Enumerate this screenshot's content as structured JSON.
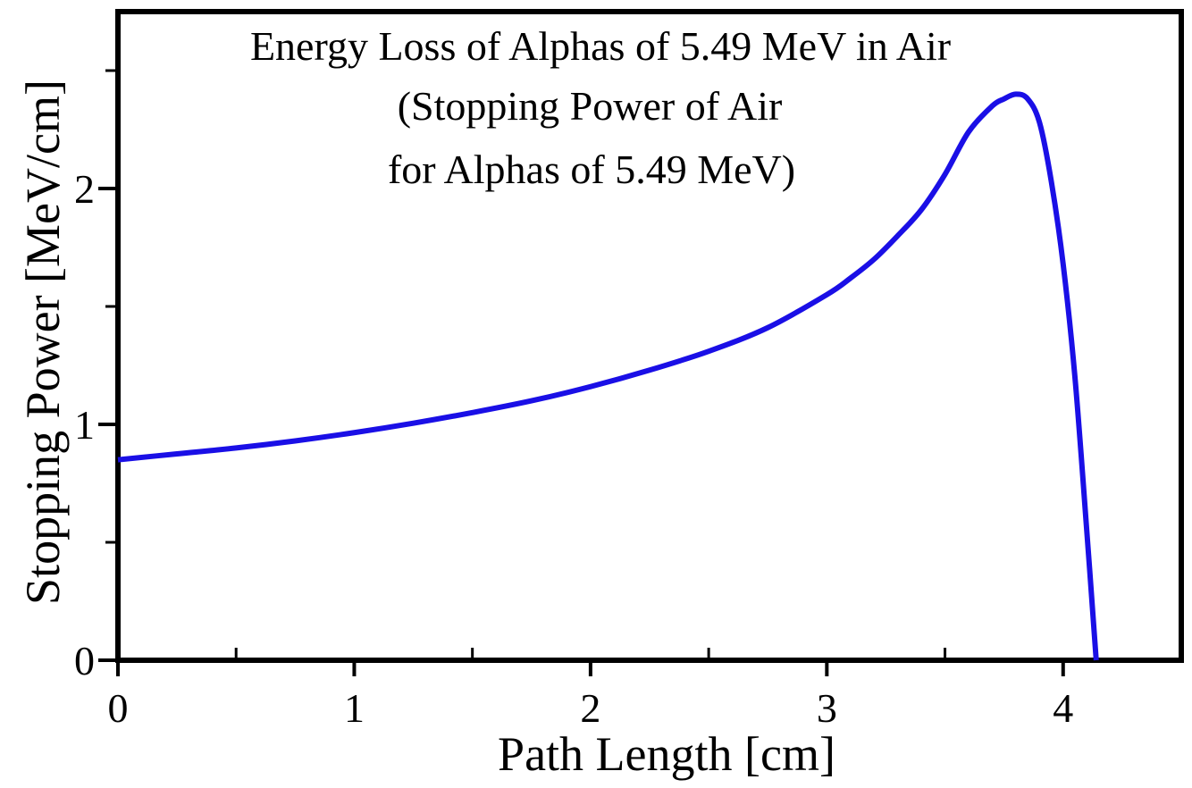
{
  "chart_data": {
    "type": "line",
    "title_lines": [
      "Energy Loss of Alphas of 5.49 MeV in Air",
      "(Stopping Power of Air",
      "for Alphas of 5.49 MeV)"
    ],
    "xlabel": "Path Length [cm]",
    "ylabel": "Stopping Power [MeV/cm]",
    "xlim": [
      0,
      4.5
    ],
    "ylim": [
      0,
      2.75
    ],
    "x_ticks_major": [
      0,
      1,
      2,
      3,
      4
    ],
    "x_ticks_minor": [
      0.5,
      1.5,
      2.5,
      3.5,
      4.5
    ],
    "y_ticks_major": [
      0,
      1,
      2
    ],
    "y_ticks_minor": [
      0.5,
      1.5,
      2.5
    ],
    "x_tick_labels": [
      "0",
      "1",
      "2",
      "3",
      "4"
    ],
    "y_tick_labels": [
      "0",
      "1",
      "2"
    ],
    "grid": false,
    "line_color": "#1a0fe6",
    "series": [
      {
        "x": [
          0,
          0.25,
          0.5,
          0.75,
          1.0,
          1.25,
          1.5,
          1.75,
          2.0,
          2.25,
          2.5,
          2.75,
          3.0,
          3.1,
          3.2,
          3.3,
          3.4,
          3.5,
          3.6,
          3.7,
          3.75,
          3.8,
          3.85,
          3.9,
          3.95,
          4.0,
          4.05,
          4.1,
          4.14
        ],
        "y": [
          0.85,
          0.875,
          0.9,
          0.93,
          0.965,
          1.005,
          1.05,
          1.1,
          1.16,
          1.23,
          1.31,
          1.41,
          1.55,
          1.62,
          1.7,
          1.8,
          1.91,
          2.06,
          2.24,
          2.35,
          2.38,
          2.4,
          2.38,
          2.28,
          2.03,
          1.68,
          1.2,
          0.55,
          0.0
        ]
      }
    ]
  }
}
